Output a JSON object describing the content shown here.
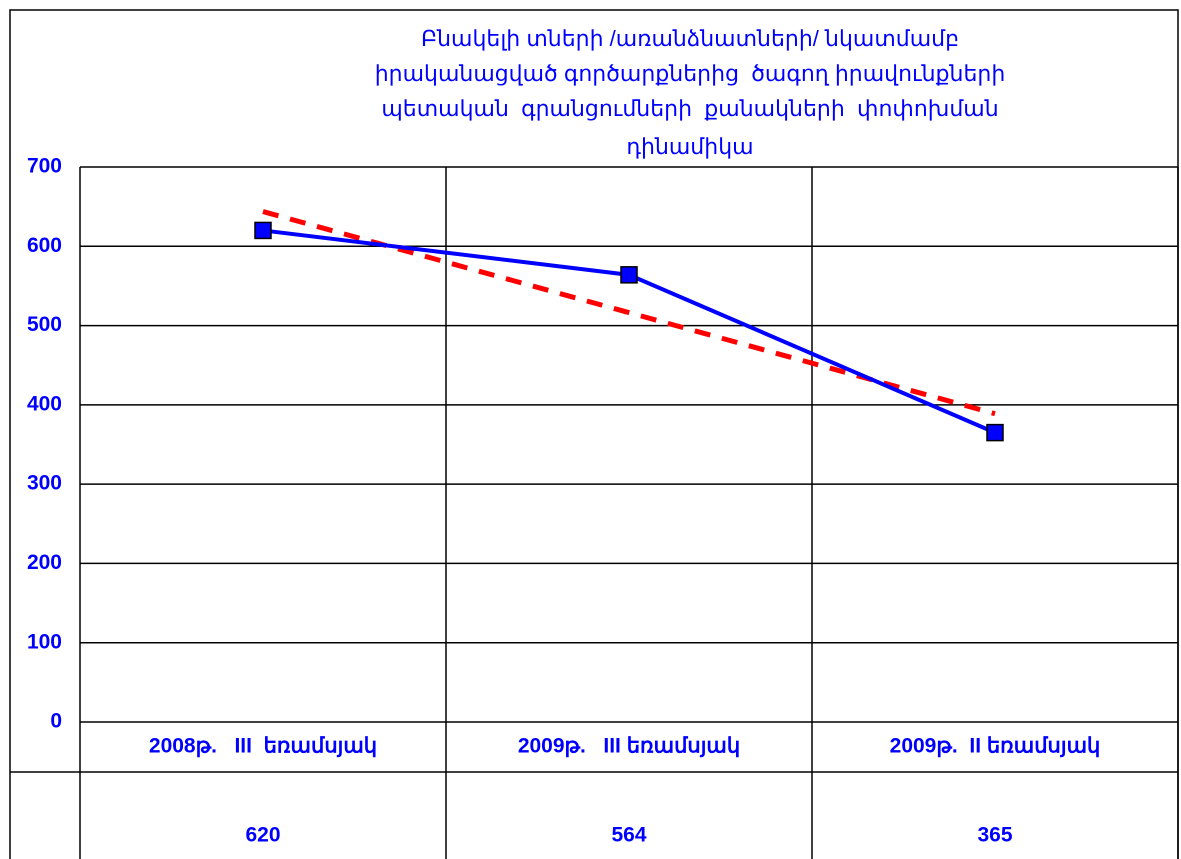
{
  "chart_data": {
    "type": "line",
    "title": [
      "Բնակելի տների /առանձնատների/ նկատմամբ",
      "իրականացված գործարքներից  ծագող իրավունքների",
      "պետական  գրանցումների  քանակների  փոփոխման",
      "դինամիկա"
    ],
    "categories": [
      "2008թ.   III  եռամսյակ",
      "2009թ.   III եռամսյակ",
      "2009թ.  II եռամսյակ"
    ],
    "series": [
      {
        "color": "#0000ff",
        "values": [
          620,
          564,
          365
        ]
      }
    ],
    "trendline": true,
    "trendline_color": "#ff0000",
    "ylim": [
      0,
      700
    ],
    "yticks": [
      0,
      100,
      200,
      300,
      400,
      500,
      600,
      700
    ],
    "grid": true,
    "data_table": true
  }
}
